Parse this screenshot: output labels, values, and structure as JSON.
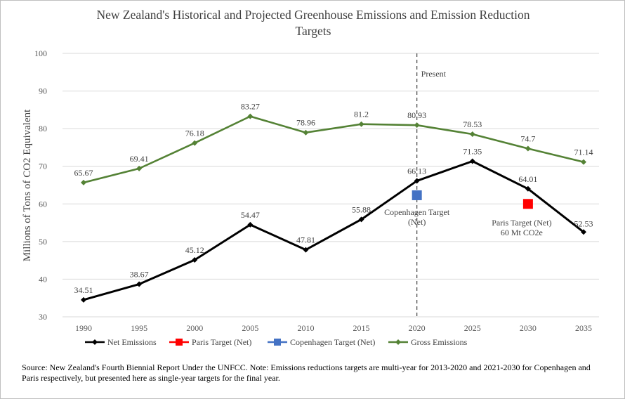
{
  "chart_data": {
    "type": "line",
    "title": "New Zealand's Historical and Projected Greenhouse Emissions and Emission Reduction Targets",
    "title_lines": [
      "New Zealand's Historical and Projected Greenhouse Emissions and Emission Reduction",
      "Targets"
    ],
    "xlabel": "",
    "ylabel": "Millions of Tons of CO2 Equivalent",
    "x": [
      1990,
      1995,
      2000,
      2005,
      2010,
      2015,
      2020,
      2025,
      2030,
      2035
    ],
    "xlim": [
      1990,
      2035
    ],
    "ylim": [
      30,
      100
    ],
    "yticks": [
      30,
      40,
      50,
      60,
      70,
      80,
      90,
      100
    ],
    "grid": "horizontal",
    "legend_position": "bottom",
    "series": [
      {
        "name": "Net Emissions",
        "color": "#000000",
        "marker": "diamond",
        "values": [
          34.51,
          38.67,
          45.12,
          54.47,
          47.81,
          55.88,
          66.13,
          71.35,
          64.01,
          52.53
        ],
        "labels": [
          "34.51",
          "38.67",
          "45.12",
          "54.47",
          "47.81",
          "55.88",
          "66.13",
          "71.35",
          "64.01",
          "52.53"
        ]
      },
      {
        "name": "Paris Target (Net)",
        "color": "#ff0000",
        "marker": "square",
        "points": [
          {
            "x": 2030,
            "y": 60
          }
        ]
      },
      {
        "name": "Copenhagen Target (Net)",
        "color": "#4472c4",
        "marker": "square",
        "points": [
          {
            "x": 2020,
            "y": 62.3
          }
        ]
      },
      {
        "name": "Gross Emissions",
        "color": "#548235",
        "marker": "diamond",
        "values": [
          65.67,
          69.41,
          76.18,
          83.27,
          78.96,
          81.2,
          80.93,
          78.53,
          74.7,
          71.14
        ],
        "labels": [
          "65.67",
          "69.41",
          "76.18",
          "83.27",
          "78.96",
          "81.2",
          "80.93",
          "78.53",
          "74.7",
          "71.14"
        ]
      }
    ],
    "annotations": {
      "present_line_x": 2020,
      "present_label": "Present",
      "copenhagen_label": [
        "Copenhagen Target",
        "(Net)"
      ],
      "paris_label": [
        "Paris Target (Net)",
        "60 Mt CO2e"
      ]
    }
  },
  "footnote": "Source: New Zealand's Fourth Biennial Report Under the UNFCC. Note: Emissions reductions targets are multi-year for 2013-2020 and 2021-2030 for Copenhagen and Paris respectively, but presented here as single-year targets for the final year."
}
